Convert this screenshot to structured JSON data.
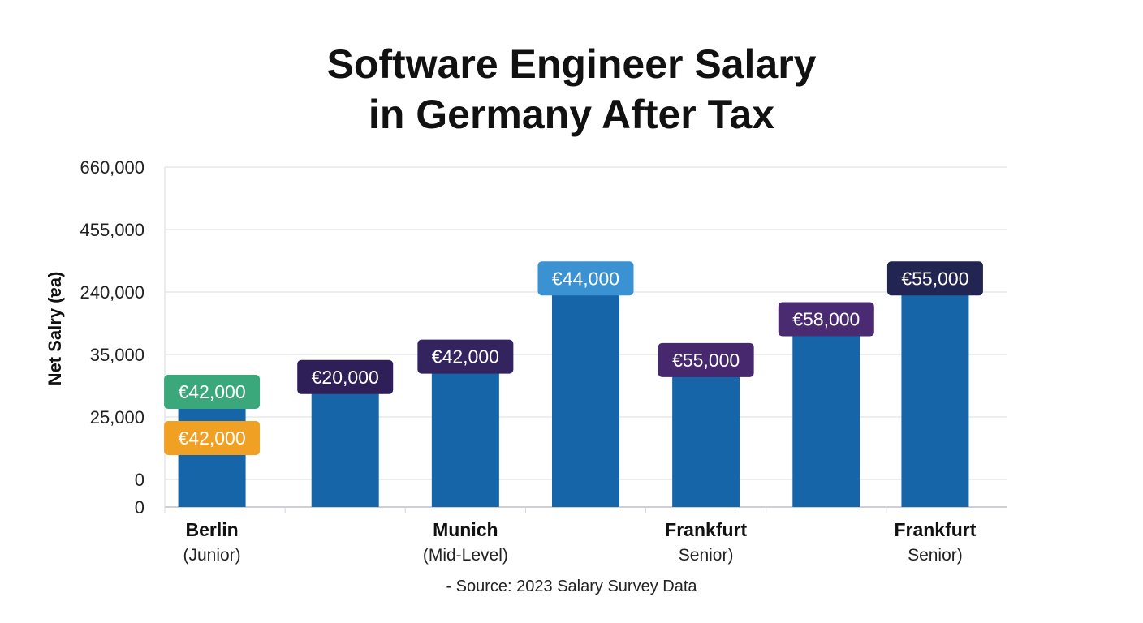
{
  "chart_data": {
    "type": "bar",
    "title_line1": "Software Engineer Salary",
    "title_line2": "in Germany After Tax",
    "ylabel": "Net Salry (ɐa)",
    "y_ticks": [
      "660,000",
      "455,000",
      "240,000",
      "35,000",
      "25,000",
      "0",
      "0"
    ],
    "grid": true,
    "categories": [
      {
        "name": "Berlin",
        "sub": "(Junior)"
      },
      {
        "name": "",
        "sub": ""
      },
      {
        "name": "Munich",
        "sub": "(Mid-Level)"
      },
      {
        "name": "",
        "sub": ""
      },
      {
        "name": "Frankfurt",
        "sub": "Senior)"
      },
      {
        "name": "",
        "sub": ""
      },
      {
        "name": "Frankfurt",
        "sub": "Senior)"
      }
    ],
    "bar_height_fraction": [
      0.3,
      0.38,
      0.44,
      0.67,
      0.43,
      0.55,
      0.67
    ],
    "data_labels": [
      [
        {
          "text": "€42,000",
          "color": "#3aa87a"
        },
        {
          "text": "€42,000",
          "color": "#f0a023"
        }
      ],
      [
        {
          "text": "€20,000",
          "color": "#2e1f58"
        }
      ],
      [
        {
          "text": "€42,000",
          "color": "#33235f"
        }
      ],
      [
        {
          "text": "€44,000",
          "color": "#3a92d2"
        }
      ],
      [
        {
          "text": "€55,000",
          "color": "#47276e"
        }
      ],
      [
        {
          "text": "€58,000",
          "color": "#4a2b72"
        }
      ],
      [
        {
          "text": "€55,000",
          "color": "#222452"
        }
      ]
    ],
    "bar_color": "#1565a8",
    "source": "- Source: 2023 Salary Survey Data"
  }
}
